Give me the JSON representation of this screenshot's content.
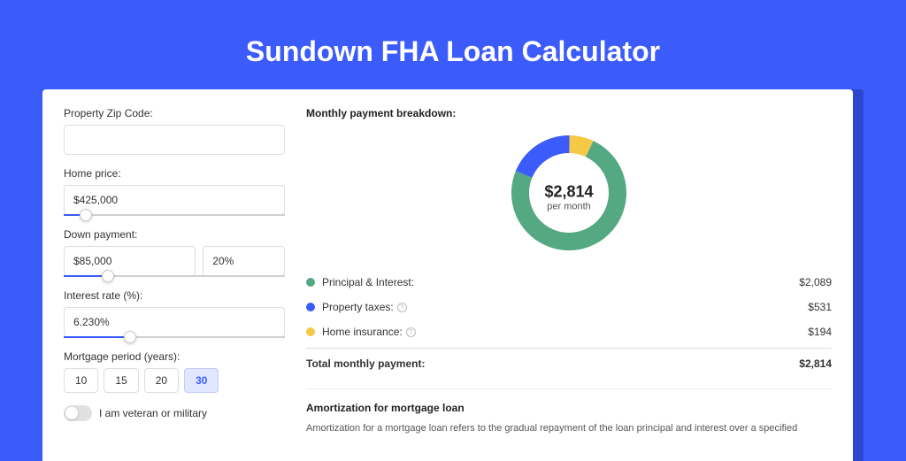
{
  "page": {
    "title": "Sundown FHA Loan Calculator",
    "background_color": "#3b5bfb",
    "shadow_color": "#2c47cf",
    "card_bg": "#ffffff"
  },
  "form": {
    "zip": {
      "label": "Property Zip Code:",
      "value": ""
    },
    "home_price": {
      "label": "Home price:",
      "value": "$425,000",
      "slider_pct": 10
    },
    "down_payment": {
      "label": "Down payment:",
      "amount": "$85,000",
      "percent": "20%",
      "slider_pct": 20
    },
    "interest": {
      "label": "Interest rate (%):",
      "value": "6.230%",
      "slider_pct": 30
    },
    "period": {
      "label": "Mortgage period (years):",
      "options": [
        "10",
        "15",
        "20",
        "30"
      ],
      "active_index": 3
    },
    "veteran": {
      "label": "I am veteran or military",
      "checked": false
    }
  },
  "breakdown": {
    "title": "Monthly payment breakdown:",
    "donut": {
      "value": "$2,814",
      "label": "per month",
      "size": 130,
      "thickness": 20,
      "slices": [
        {
          "color": "#54a882",
          "pct": 74.2
        },
        {
          "color": "#3b5bfb",
          "pct": 18.9
        },
        {
          "color": "#f5c945",
          "pct": 6.9
        }
      ]
    },
    "legend": [
      {
        "color": "#54a882",
        "label": "Principal & Interest:",
        "value": "$2,089",
        "info": false
      },
      {
        "color": "#3b5bfb",
        "label": "Property taxes:",
        "value": "$531",
        "info": true
      },
      {
        "color": "#f5c945",
        "label": "Home insurance:",
        "value": "$194",
        "info": true
      }
    ],
    "total": {
      "label": "Total monthly payment:",
      "value": "$2,814"
    }
  },
  "amortization": {
    "title": "Amortization for mortgage loan",
    "text": "Amortization for a mortgage loan refers to the gradual repayment of the loan principal and interest over a specified"
  }
}
